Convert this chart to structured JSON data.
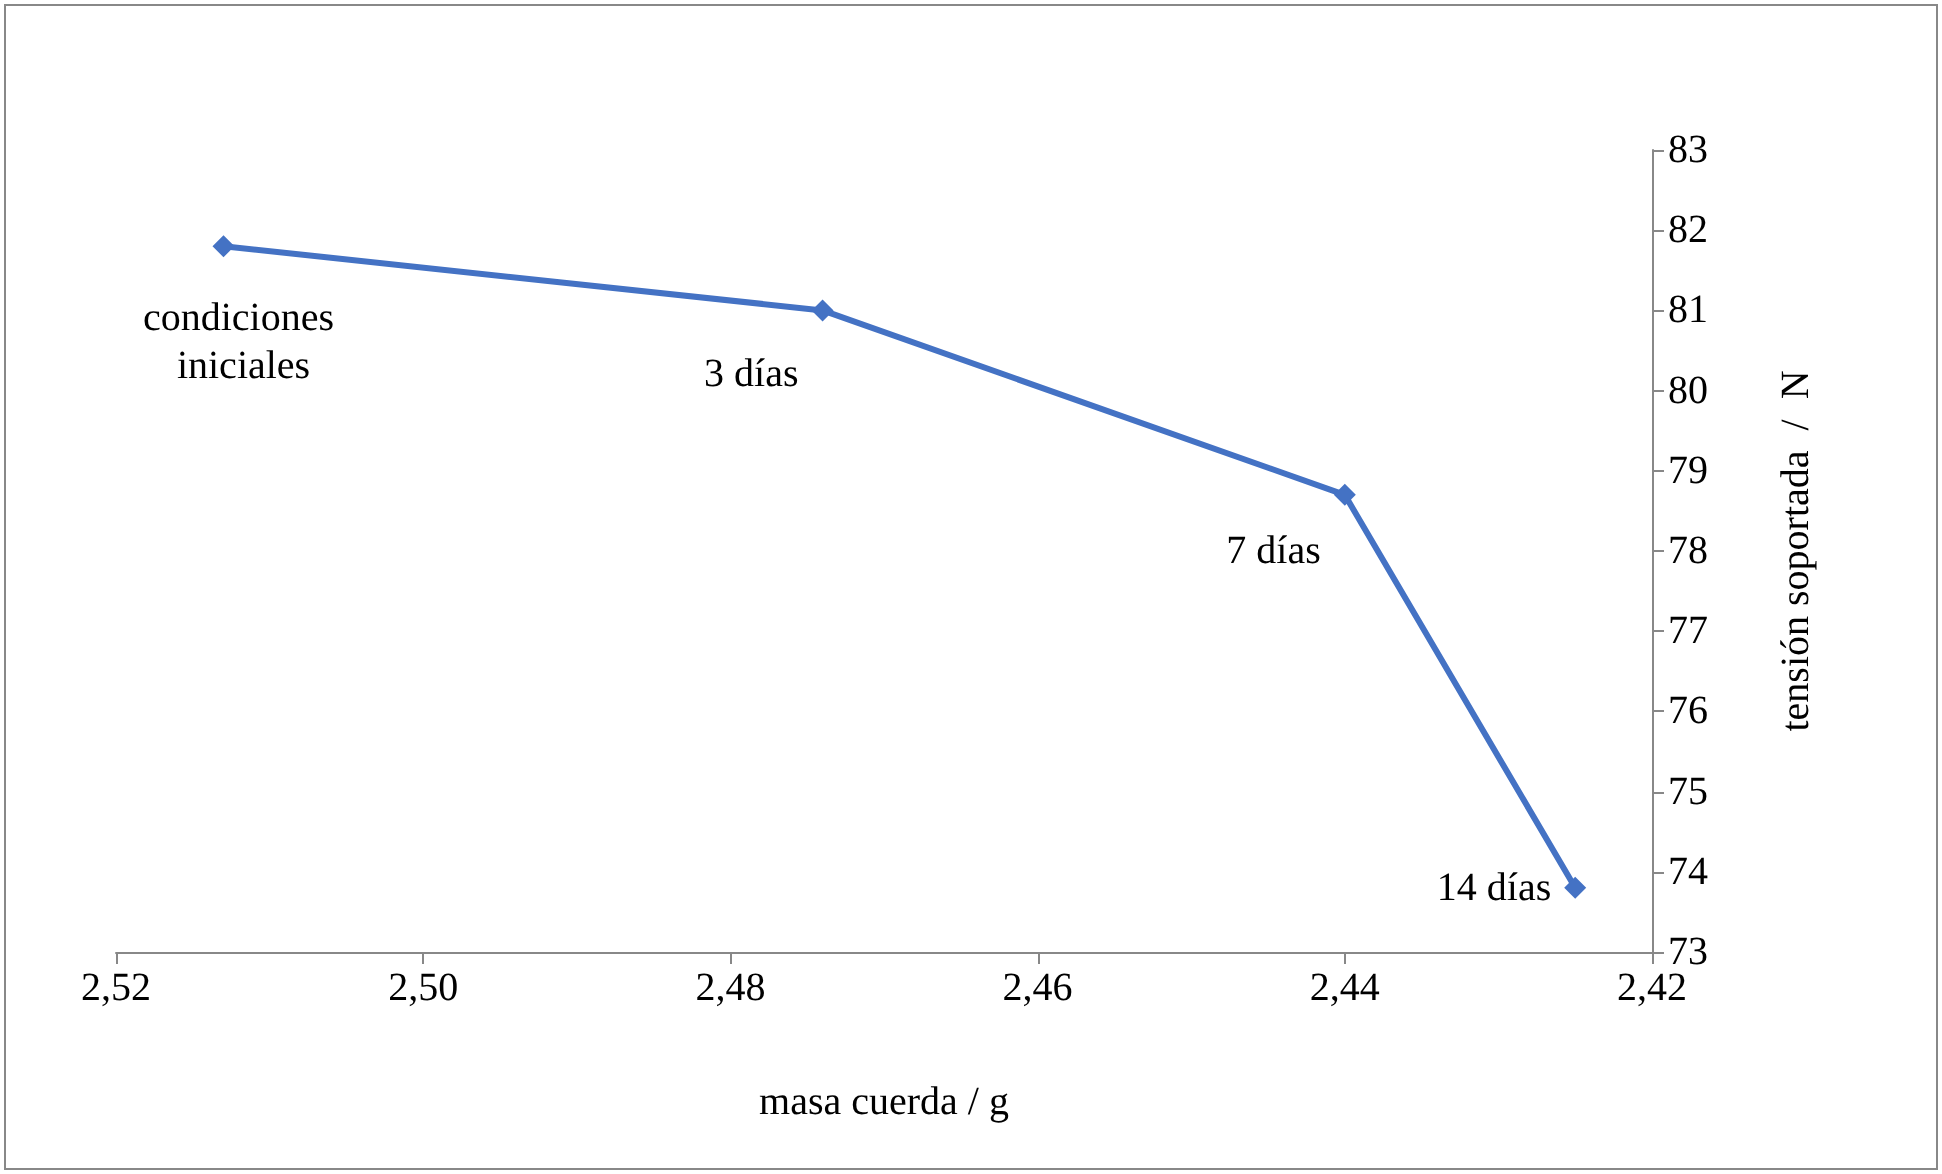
{
  "chart_data": {
    "type": "line",
    "xlabel": "masa cuerda / g",
    "ylabel": "tensión soportada  /  N",
    "x": [
      2.513,
      2.474,
      2.44,
      2.425
    ],
    "series": [
      {
        "color": "#4472c4",
        "values": [
          81.8,
          81.0,
          78.7,
          73.8
        ]
      }
    ],
    "xlim": [
      2.52,
      2.42
    ],
    "xticks": [
      {
        "value": 2.52,
        "label": "2,52"
      },
      {
        "value": 2.5,
        "label": "2,50"
      },
      {
        "value": 2.48,
        "label": "2,48"
      },
      {
        "value": 2.46,
        "label": "2,46"
      },
      {
        "value": 2.44,
        "label": "2,44"
      },
      {
        "value": 2.42,
        "label": "2,42"
      }
    ],
    "ylim": [
      73,
      83
    ],
    "yticks": [
      73,
      74,
      75,
      76,
      77,
      78,
      79,
      80,
      81,
      82,
      83
    ],
    "annotations": [
      {
        "text": "condiciones iniciales",
        "x": 2.513,
        "y": 81.8
      },
      {
        "text": "3 días",
        "x": 2.474,
        "y": 81.0
      },
      {
        "text": "7 días",
        "x": 2.44,
        "y": 78.7
      },
      {
        "text": "14 días",
        "x": 2.425,
        "y": 73.8
      }
    ],
    "grid": false,
    "marker": "diamond",
    "line_style": "solid"
  }
}
